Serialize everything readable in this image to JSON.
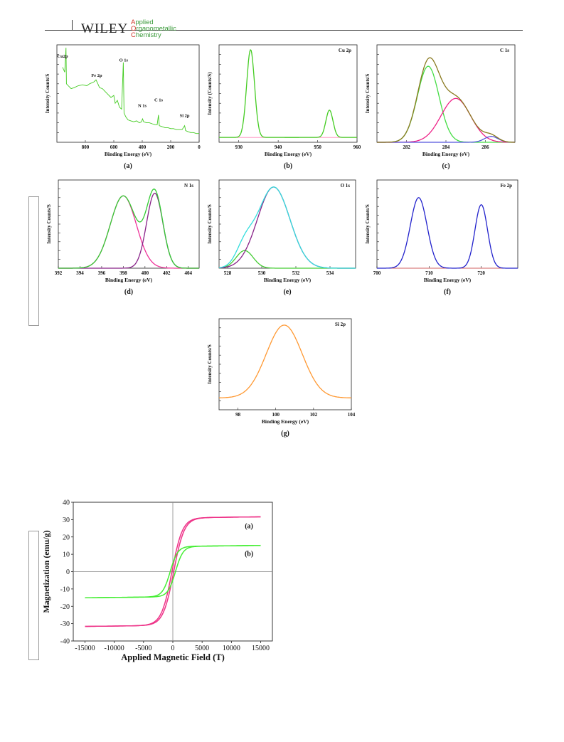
{
  "header": {
    "publisher": "WILEY",
    "journal_lines": [
      {
        "cap": "A",
        "rest": "pplied"
      },
      {
        "cap": "O",
        "rest": "rganometallic"
      },
      {
        "cap": "C",
        "rest": "hemistry"
      }
    ]
  },
  "chart_data": [
    {
      "id": "a",
      "type": "line",
      "panel_label": "(a)",
      "ylabel": "Intensity Counts/S",
      "xlabel": "Binding Energy (eV)",
      "xlim": [
        1000,
        0
      ],
      "xreverse": true,
      "xticks": [
        800,
        600,
        400,
        200,
        0
      ],
      "annotations": [
        {
          "text": "Cu2p",
          "x": 940
        },
        {
          "text": "Fe 2p",
          "x": 720
        },
        {
          "text": "O 1s",
          "x": 531
        },
        {
          "text": "N 1s",
          "x": 400
        },
        {
          "text": "C 1s",
          "x": 285
        },
        {
          "text": "Si 2p",
          "x": 102
        }
      ],
      "series": [
        {
          "color": "#44cc22",
          "points": [
            [
              960,
              0.77
            ],
            [
              945,
              0.72
            ],
            [
              936,
              0.97
            ],
            [
              933,
              0.6
            ],
            [
              920,
              0.58
            ],
            [
              900,
              0.55
            ],
            [
              880,
              0.56
            ],
            [
              850,
              0.58
            ],
            [
              820,
              0.59
            ],
            [
              790,
              0.58
            ],
            [
              770,
              0.6
            ],
            [
              740,
              0.62
            ],
            [
              725,
              0.64
            ],
            [
              712,
              0.6
            ],
            [
              700,
              0.56
            ],
            [
              680,
              0.55
            ],
            [
              660,
              0.52
            ],
            [
              640,
              0.49
            ],
            [
              620,
              0.46
            ],
            [
              600,
              0.48
            ],
            [
              590,
              0.4
            ],
            [
              575,
              0.43
            ],
            [
              560,
              0.36
            ],
            [
              545,
              0.34
            ],
            [
              533,
              0.82
            ],
            [
              528,
              0.3
            ],
            [
              515,
              0.26
            ],
            [
              500,
              0.23
            ],
            [
              480,
              0.22
            ],
            [
              460,
              0.21
            ],
            [
              440,
              0.22
            ],
            [
              420,
              0.2
            ],
            [
              405,
              0.21
            ],
            [
              398,
              0.24
            ],
            [
              390,
              0.21
            ],
            [
              370,
              0.2
            ],
            [
              350,
              0.2
            ],
            [
              330,
              0.19
            ],
            [
              310,
              0.18
            ],
            [
              295,
              0.18
            ],
            [
              286,
              0.28
            ],
            [
              280,
              0.17
            ],
            [
              260,
              0.16
            ],
            [
              240,
              0.15
            ],
            [
              220,
              0.15
            ],
            [
              200,
              0.14
            ],
            [
              180,
              0.14
            ],
            [
              160,
              0.13
            ],
            [
              140,
              0.13
            ],
            [
              120,
              0.13
            ],
            [
              102,
              0.17
            ],
            [
              95,
              0.12
            ],
            [
              80,
              0.11
            ],
            [
              60,
              0.1
            ],
            [
              40,
              0.1
            ],
            [
              20,
              0.09
            ],
            [
              0,
              0.09
            ]
          ]
        }
      ]
    },
    {
      "id": "b",
      "type": "line",
      "panel_label": "(b)",
      "title": "Cu 2p",
      "ylabel": "Intensity (Counts/S)",
      "xlabel": "Binding Energy (eV)",
      "xlim": [
        925,
        960
      ],
      "xticks": [
        930,
        940,
        950,
        960
      ],
      "baseline": 0.05,
      "series": [
        {
          "color": "#ff88bb",
          "peaks": []
        },
        {
          "color": "#44cc22",
          "peaks": [
            {
              "center": 933,
              "height": 0.9,
              "width": 1.0
            },
            {
              "center": 953,
              "height": 0.28,
              "width": 0.9
            }
          ]
        }
      ]
    },
    {
      "id": "c",
      "type": "line",
      "panel_label": "(c)",
      "title": "C 1s",
      "ylabel": "Intensity Counts/S",
      "xlabel": "Binding Energy (eV)",
      "xlim": [
        280.5,
        287.5
      ],
      "xticks": [
        282,
        284,
        286
      ],
      "baseline": 0.0,
      "series": [
        {
          "color": "#ff8800",
          "peaks": []
        },
        {
          "color": "#44dd44",
          "peaks": [
            {
              "center": 283.1,
              "height": 0.78,
              "width": 0.55
            }
          ]
        },
        {
          "color": "#ee2288",
          "peaks": [
            {
              "center": 284.5,
              "height": 0.45,
              "width": 0.75
            }
          ]
        },
        {
          "color": "#5555dd",
          "peaks": [
            {
              "center": 286.3,
              "height": 0.06,
              "width": 0.35
            }
          ]
        },
        {
          "color": "#8a7a20",
          "sum": [
            1,
            2,
            3
          ]
        }
      ]
    },
    {
      "id": "d",
      "type": "line",
      "panel_label": "(d)",
      "title": "N 1s",
      "ylabel": "Intensity Counts/S",
      "xlabel": "Binding Energy (eV)",
      "xlim": [
        392,
        405
      ],
      "xticks": [
        392,
        394,
        396,
        398,
        400,
        402,
        404
      ],
      "baseline": 0.0,
      "series": [
        {
          "color": "#ee3399",
          "peaks": [
            {
              "center": 398.0,
              "height": 0.82,
              "width": 1.2
            }
          ]
        },
        {
          "color": "#882288",
          "peaks": [
            {
              "center": 400.9,
              "height": 0.85,
              "width": 0.75
            }
          ]
        },
        {
          "color": "#33cc33",
          "sum": [
            0,
            1
          ]
        }
      ]
    },
    {
      "id": "e",
      "type": "line",
      "panel_label": "(e)",
      "title": "O 1s",
      "ylabel": "Intensity Counts/S",
      "xlabel": "Binding Energy (eV)",
      "xlim": [
        527.5,
        535.5
      ],
      "xticks": [
        528,
        530,
        532,
        534
      ],
      "baseline": 0.0,
      "series": [
        {
          "color": "#44cc33",
          "peaks": [
            {
              "center": 529.0,
              "height": 0.2,
              "width": 0.5
            }
          ]
        },
        {
          "color": "#882288",
          "peaks": [
            {
              "center": 530.7,
              "height": 0.92,
              "width": 0.95
            }
          ]
        },
        {
          "color": "#33dddd",
          "sum": [
            0,
            1
          ]
        }
      ]
    },
    {
      "id": "f",
      "type": "line",
      "panel_label": "(f)",
      "title": "Fe 2p",
      "ylabel": "Intensity Counts/S",
      "xlabel": "Binding Energy (eV)",
      "xlim": [
        700,
        727
      ],
      "xticks": [
        700,
        710,
        720
      ],
      "baseline": 0.0,
      "series": [
        {
          "color": "#ff6666",
          "peaks": []
        },
        {
          "color": "#2222cc",
          "peaks": [
            {
              "center": 708,
              "height": 0.8,
              "width": 1.6
            },
            {
              "center": 720,
              "height": 0.72,
              "width": 1.2
            }
          ]
        }
      ]
    },
    {
      "id": "g",
      "type": "line",
      "panel_label": "(g)",
      "title": "Si 2p",
      "ylabel": "Intensity Counts/S",
      "xlabel": "Binding Energy (eV)",
      "xlim": [
        97,
        104
      ],
      "xticks": [
        98,
        100,
        102,
        104
      ],
      "baseline": 0.13,
      "series": [
        {
          "color": "#ff9933",
          "peaks": [
            {
              "center": 100.45,
              "height": 0.8,
              "width": 0.95
            }
          ]
        }
      ]
    },
    {
      "id": "mag",
      "type": "line",
      "ylabel": "Magnetization (emu/g)",
      "xlabel": "Applied Magnetic Field (T)",
      "xlim": [
        -17000,
        17000
      ],
      "ylim": [
        -40,
        40
      ],
      "xticks": [
        -15000,
        -10000,
        -5000,
        0,
        5000,
        10000,
        15000
      ],
      "yticks": [
        -40,
        -30,
        -20,
        -10,
        0,
        10,
        20,
        30,
        40
      ],
      "annotations": [
        {
          "text": "(a)",
          "x": 13000,
          "y": 25
        },
        {
          "text": "(b)",
          "x": 13000,
          "y": 9
        }
      ],
      "series": [
        {
          "name": "(a)",
          "color": "#ee3388",
          "ms": 31,
          "h0": 1800,
          "hc": 150
        },
        {
          "name": "(b)",
          "color": "#44ee33",
          "ms": 14.5,
          "h0": 1300,
          "hc": 450
        }
      ]
    }
  ]
}
